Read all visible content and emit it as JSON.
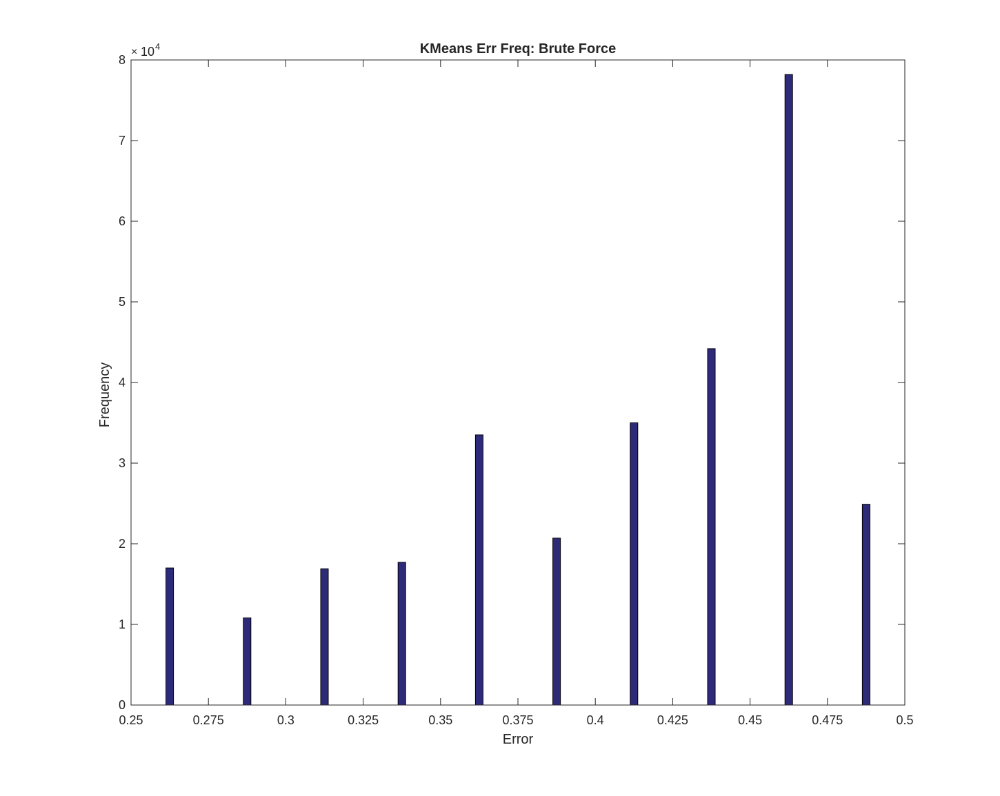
{
  "chart_data": {
    "type": "bar",
    "title": "KMeans Err Freq: Brute Force",
    "xlabel": "Error",
    "ylabel": "Frequency",
    "y_exponent_label": "10",
    "y_exponent_power": "4",
    "x": [
      0.2625,
      0.2875,
      0.3125,
      0.3375,
      0.3625,
      0.3875,
      0.4125,
      0.4375,
      0.4625,
      0.4875
    ],
    "values": [
      17000,
      10800,
      16900,
      17700,
      33500,
      20700,
      35000,
      44200,
      78200,
      24900
    ],
    "xlim": [
      0.25,
      0.5
    ],
    "ylim": [
      0,
      80000
    ],
    "xticks": [
      0.25,
      0.275,
      0.3,
      0.325,
      0.35,
      0.375,
      0.4,
      0.425,
      0.45,
      0.475,
      0.5
    ],
    "xtick_labels": [
      "0.25",
      "0.275",
      "0.3",
      "0.325",
      "0.35",
      "0.375",
      "0.4",
      "0.425",
      "0.45",
      "0.475",
      "0.5"
    ],
    "yticks": [
      0,
      10000,
      20000,
      30000,
      40000,
      50000,
      60000,
      70000,
      80000
    ],
    "ytick_labels": [
      "0",
      "1",
      "2",
      "3",
      "4",
      "5",
      "6",
      "7",
      "8"
    ],
    "bar_color": "#2e2a7a",
    "bar_edge_color": "#000000",
    "grid": false,
    "legend": "none"
  }
}
